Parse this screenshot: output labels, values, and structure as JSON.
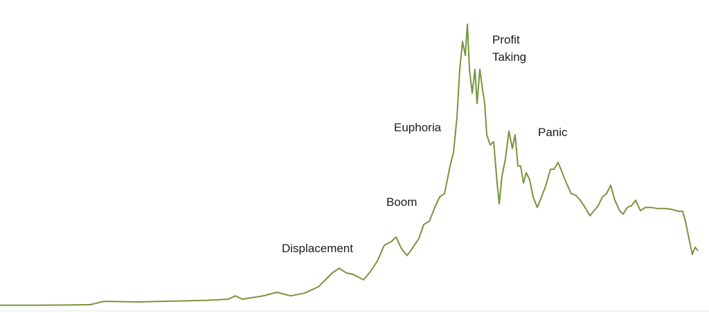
{
  "chart_data": {
    "type": "line",
    "annotations": [
      "Displacement",
      "Boom",
      "Euphoria",
      "Profit Taking",
      "Panic"
    ],
    "xlim": [
      0,
      102.4
    ],
    "ylim": [
      0,
      110
    ],
    "series": [
      {
        "color": "#77933c",
        "x": [
          0,
          5,
          10,
          13,
          15,
          16,
          20,
          25,
          30,
          33,
          34,
          35,
          38,
          40,
          42,
          44,
          46,
          47,
          48,
          49,
          50,
          51,
          52.5,
          53.5,
          54.5,
          55.5,
          56.5,
          57.2,
          58,
          58.8,
          59.5,
          60.5,
          61.2,
          62,
          62.8,
          63.5,
          64.2,
          65,
          65.5,
          66,
          66.4,
          66.8,
          67.2,
          67.5,
          67.8,
          68.2,
          68.6,
          68.9,
          69.3,
          69.7,
          70,
          70.3,
          70.8,
          71.3,
          71.8,
          72.1,
          72.5,
          73,
          73.5,
          74,
          74.4,
          74.8,
          75.2,
          75.6,
          76,
          76.5,
          77,
          77.6,
          78.2,
          78.8,
          79.5,
          80,
          80.6,
          81.2,
          81.8,
          82.5,
          83.2,
          83.8,
          84.5,
          85.2,
          85.8,
          86.4,
          87,
          87.6,
          88.2,
          88.8,
          89.5,
          90,
          90.6,
          91.2,
          91.8,
          92.5,
          93.2,
          94,
          95,
          96,
          97,
          98,
          98.6,
          99,
          99.5,
          100,
          100.4,
          100.8
        ],
        "values": [
          0.8,
          0.8,
          0.9,
          1,
          2.2,
          2.2,
          2,
          2.3,
          2.6,
          3,
          4.2,
          3,
          4.2,
          5.5,
          4.2,
          5.2,
          7.5,
          10,
          12.5,
          14.2,
          12.5,
          12,
          10,
          13,
          16.8,
          22.5,
          23.8,
          25.5,
          21.2,
          18.8,
          21.2,
          25,
          30,
          31.2,
          36.2,
          40,
          41.2,
          51.2,
          56.2,
          68.8,
          86.2,
          96.2,
          91.2,
          102.5,
          86.2,
          77.5,
          86.2,
          73.8,
          86.2,
          78.8,
          73.8,
          62.5,
          58.8,
          60,
          45,
          37.5,
          47.5,
          53.8,
          63.8,
          57.5,
          62.5,
          51.2,
          51.2,
          45,
          48.8,
          46.2,
          40,
          36.2,
          40,
          43.8,
          50,
          50,
          52.5,
          48.8,
          45,
          41.2,
          40.5,
          38.8,
          36.2,
          33.2,
          35,
          36.8,
          40,
          41.2,
          44.2,
          38.8,
          35,
          33.8,
          36.2,
          36.8,
          38.8,
          35,
          36.2,
          36.2,
          35.8,
          35.8,
          35.5,
          34.8,
          34.8,
          31.2,
          25,
          19.2,
          21.8,
          20.5
        ]
      }
    ]
  }
}
